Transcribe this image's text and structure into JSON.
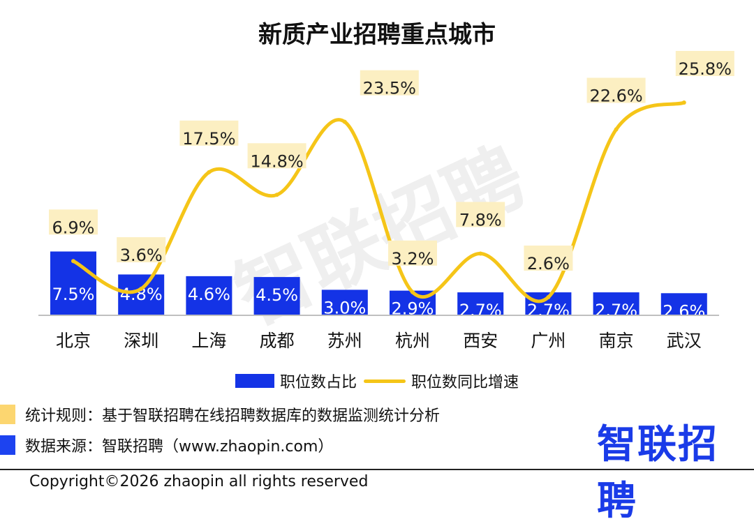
{
  "title": "新质产业招聘重点城市",
  "watermark": "智联招聘",
  "legend": [
    {
      "label": "职位数占比",
      "kind": "bar"
    },
    {
      "label": "职位数同比增速",
      "kind": "line"
    }
  ],
  "notes": [
    {
      "text": "统计规则：基于智联招聘在线招聘数据库的数据监测统计分析",
      "color": "#fcd670"
    },
    {
      "text": "数据来源：智联招聘（www.zhaopin.com）",
      "color": "#1d43f0"
    }
  ],
  "brand": "智联招聘",
  "copyright": "Copyright©2026 zhaopin all rights reserved",
  "colors": {
    "bar": "#1433e6",
    "line": "#f5c518",
    "label_bg": "#fcefc2"
  },
  "chart_data": {
    "type": "bar",
    "title": "新质产业招聘重点城市",
    "categories": [
      "北京",
      "深圳",
      "上海",
      "成都",
      "苏州",
      "杭州",
      "西安",
      "广州",
      "南京",
      "武汉"
    ],
    "series": [
      {
        "name": "职位数占比",
        "type": "bar",
        "values": [
          7.5,
          4.8,
          4.6,
          4.5,
          3.0,
          2.9,
          2.7,
          2.7,
          2.7,
          2.6
        ],
        "labels": [
          "7.5%",
          "4.8%",
          "4.6%",
          "4.5%",
          "3.0%",
          "2.9%",
          "2.7%",
          "2.7%",
          "2.7%",
          "2.6%"
        ]
      },
      {
        "name": "职位数同比增速",
        "type": "line",
        "values": [
          6.9,
          3.6,
          17.5,
          14.8,
          23.5,
          3.2,
          7.8,
          2.6,
          22.6,
          25.8
        ],
        "labels": [
          "6.9%",
          "3.6%",
          "17.5%",
          "14.8%",
          "23.5%",
          "3.2%",
          "7.8%",
          "2.6%",
          "22.6%",
          "25.8%"
        ]
      }
    ],
    "legend_position": "bottom",
    "grid": false
  }
}
